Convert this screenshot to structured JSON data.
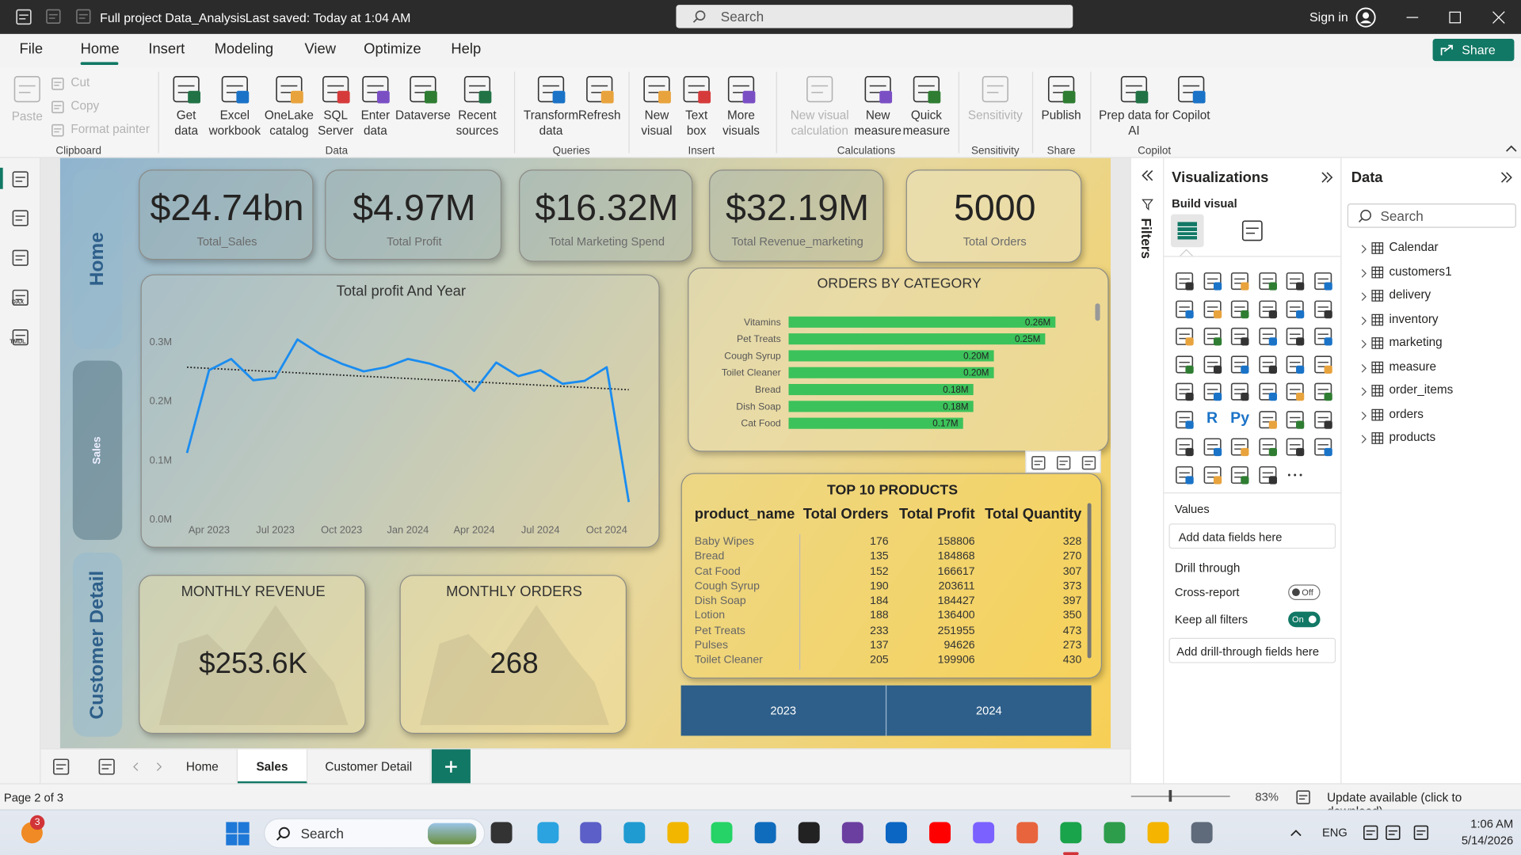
{
  "title_bar": {
    "document_title": "Full project Data_Analysis",
    "save_status": "Last saved: Today at 1:04 AM",
    "search": "Search",
    "sign_in": "Sign in"
  },
  "menu": {
    "tabs": [
      "File",
      "Home",
      "Insert",
      "Modeling",
      "View",
      "Optimize",
      "Help"
    ],
    "share": "Share"
  },
  "ribbon": {
    "groups": [
      {
        "name": "Clipboard",
        "items": [
          "Paste",
          "Cut",
          "Copy",
          "Format painter"
        ]
      },
      {
        "name": "Data",
        "items": [
          "Get\ndata",
          "Excel\nworkbook",
          "OneLake\ncatalog",
          "SQL\nServer",
          "Enter\ndata",
          "Dataverse",
          "Recent\nsources"
        ]
      },
      {
        "name": "Queries",
        "items": [
          "Transform\ndata",
          "Refresh"
        ]
      },
      {
        "name": "Insert",
        "items": [
          "New\nvisual",
          "Text\nbox",
          "More\nvisuals"
        ]
      },
      {
        "name": "Calculations",
        "items": [
          "New visual\ncalculation",
          "New\nmeasure",
          "Quick\nmeasure"
        ]
      },
      {
        "name": "Sensitivity",
        "items": [
          "Sensitivity"
        ]
      },
      {
        "name": "Share",
        "items": [
          "Publish"
        ]
      },
      {
        "name": "Copilot",
        "items": [
          "Prep data for\nAI",
          "Copilot"
        ]
      }
    ]
  },
  "left_nav": {
    "icon_labels": [
      "DAX",
      "TMDL"
    ]
  },
  "report": {
    "page_nav": [
      "Home",
      "Sales",
      "Customer Detail"
    ],
    "kpi_cards": [
      {
        "value": "$24.74bn",
        "label": "Total_Sales"
      },
      {
        "value": "$4.97M",
        "label": "Total Profit"
      },
      {
        "value": "$16.32M",
        "label": "Total Marketing Spend"
      },
      {
        "value": "$32.19M",
        "label": "Total Revenue_marketing"
      },
      {
        "value": "5000",
        "label": "Total Orders"
      }
    ],
    "profit_chart": {
      "type": "line",
      "title": "Total profit And Year",
      "x": [
        "2023-03",
        "2023-04",
        "2023-05",
        "2023-06",
        "2023-07",
        "2023-08",
        "2023-09",
        "2023-10",
        "2023-11",
        "2023-12",
        "2024-01",
        "2024-02",
        "2024-03",
        "2024-04",
        "2024-05",
        "2024-06",
        "2024-07",
        "2024-08",
        "2024-09",
        "2024-10",
        "2024-11"
      ],
      "series": [
        {
          "color": "#1a8cf0",
          "values": [
            0.111,
            0.251,
            0.27,
            0.234,
            0.238,
            0.303,
            0.279,
            0.262,
            0.249,
            0.256,
            0.27,
            0.262,
            0.249,
            0.216,
            0.264,
            0.241,
            0.251,
            0.228,
            0.233,
            0.256,
            0.028
          ]
        }
      ],
      "trendline": {
        "color": "#222222",
        "values": [
          0.256,
          0.218
        ]
      },
      "xlim": [
        "2023-02",
        "2024-12"
      ],
      "xticks": [
        {
          "value": "2023-04",
          "label": "Apr 2023"
        },
        {
          "value": "2023-07",
          "label": "Jul 2023"
        },
        {
          "value": "2023-10",
          "label": "Oct 2023"
        },
        {
          "value": "2024-01",
          "label": "Jan 2024"
        },
        {
          "value": "2024-04",
          "label": "Apr 2024"
        },
        {
          "value": "2024-07",
          "label": "Jul 2024"
        },
        {
          "value": "2024-10",
          "label": "Oct 2024"
        }
      ],
      "ylim": [
        0,
        0.33
      ],
      "yticks": [
        {
          "value": 0,
          "label": "0.0M"
        },
        {
          "value": 0.1,
          "label": "0.1M"
        },
        {
          "value": 0.2,
          "label": "0.2M"
        },
        {
          "value": 0.3,
          "label": "0.3M"
        }
      ]
    },
    "orders_by_category": {
      "type": "bar",
      "orientation": "horizontal",
      "title": "ORDERS BY CATEGORY",
      "categories": [
        "Vitamins",
        "Pet Treats",
        "Cough Syrup",
        "Toilet Cleaner",
        "Bread",
        "Dish Soap",
        "Cat Food"
      ],
      "values": [
        0.26,
        0.25,
        0.2,
        0.2,
        0.18,
        0.18,
        0.17
      ],
      "value_labels": [
        "0.26M",
        "0.25M",
        "0.20M",
        "0.20M",
        "0.18M",
        "0.18M",
        "0.17M"
      ],
      "color": "#3cc25a",
      "xlim": [
        0,
        0.3
      ]
    },
    "top_products": {
      "title": "TOP 10 PRODUCTS",
      "columns": [
        "product_name",
        "Total Orders",
        "Total Profit",
        "Total Quantity"
      ],
      "rows": [
        [
          "Baby Wipes",
          176,
          158806,
          328
        ],
        [
          "Bread",
          135,
          184868,
          270
        ],
        [
          "Cat Food",
          152,
          166617,
          307
        ],
        [
          "Cough Syrup",
          190,
          203611,
          373
        ],
        [
          "Dish Soap",
          184,
          184427,
          397
        ],
        [
          "Lotion",
          188,
          136400,
          350
        ],
        [
          "Pet Treats",
          233,
          251955,
          473
        ],
        [
          "Pulses",
          137,
          94626,
          273
        ],
        [
          "Toilet Cleaner",
          205,
          199906,
          430
        ]
      ]
    },
    "monthly_revenue": {
      "title": "MONTHLY REVENUE",
      "value": "$253.6K"
    },
    "monthly_orders": {
      "title": "MONTHLY ORDERS",
      "value": "268"
    },
    "year_slicer": [
      "2023",
      "2024"
    ]
  },
  "page_tabs": [
    "Home",
    "Sales",
    "Customer Detail"
  ],
  "filters_pane": {
    "title": "Filters"
  },
  "visualizations_pane": {
    "title": "Visualizations",
    "build_visual": "Build visual",
    "icon_texts": [
      "R",
      "Py"
    ],
    "values_label": "Values",
    "values_placeholder": "Add data fields here",
    "drill_through": "Drill through",
    "cross_report": "Cross-report",
    "cross_report_state": "Off",
    "keep_all_filters": "Keep all filters",
    "keep_all_filters_state": "On",
    "drill_placeholder": "Add drill-through fields here"
  },
  "data_pane": {
    "title": "Data",
    "search": "Search",
    "tables": [
      "Calendar",
      "customers1",
      "delivery",
      "inventory",
      "marketing",
      "measure",
      "order_items",
      "orders",
      "products"
    ]
  },
  "status_bar": {
    "page": "Page 2 of 3",
    "zoom": "83%",
    "update": "Update available (click to download)"
  },
  "taskbar": {
    "notification_count": "3",
    "search": "Search",
    "language": "ENG",
    "time": "1:06 AM",
    "date": "5/14/2026"
  }
}
